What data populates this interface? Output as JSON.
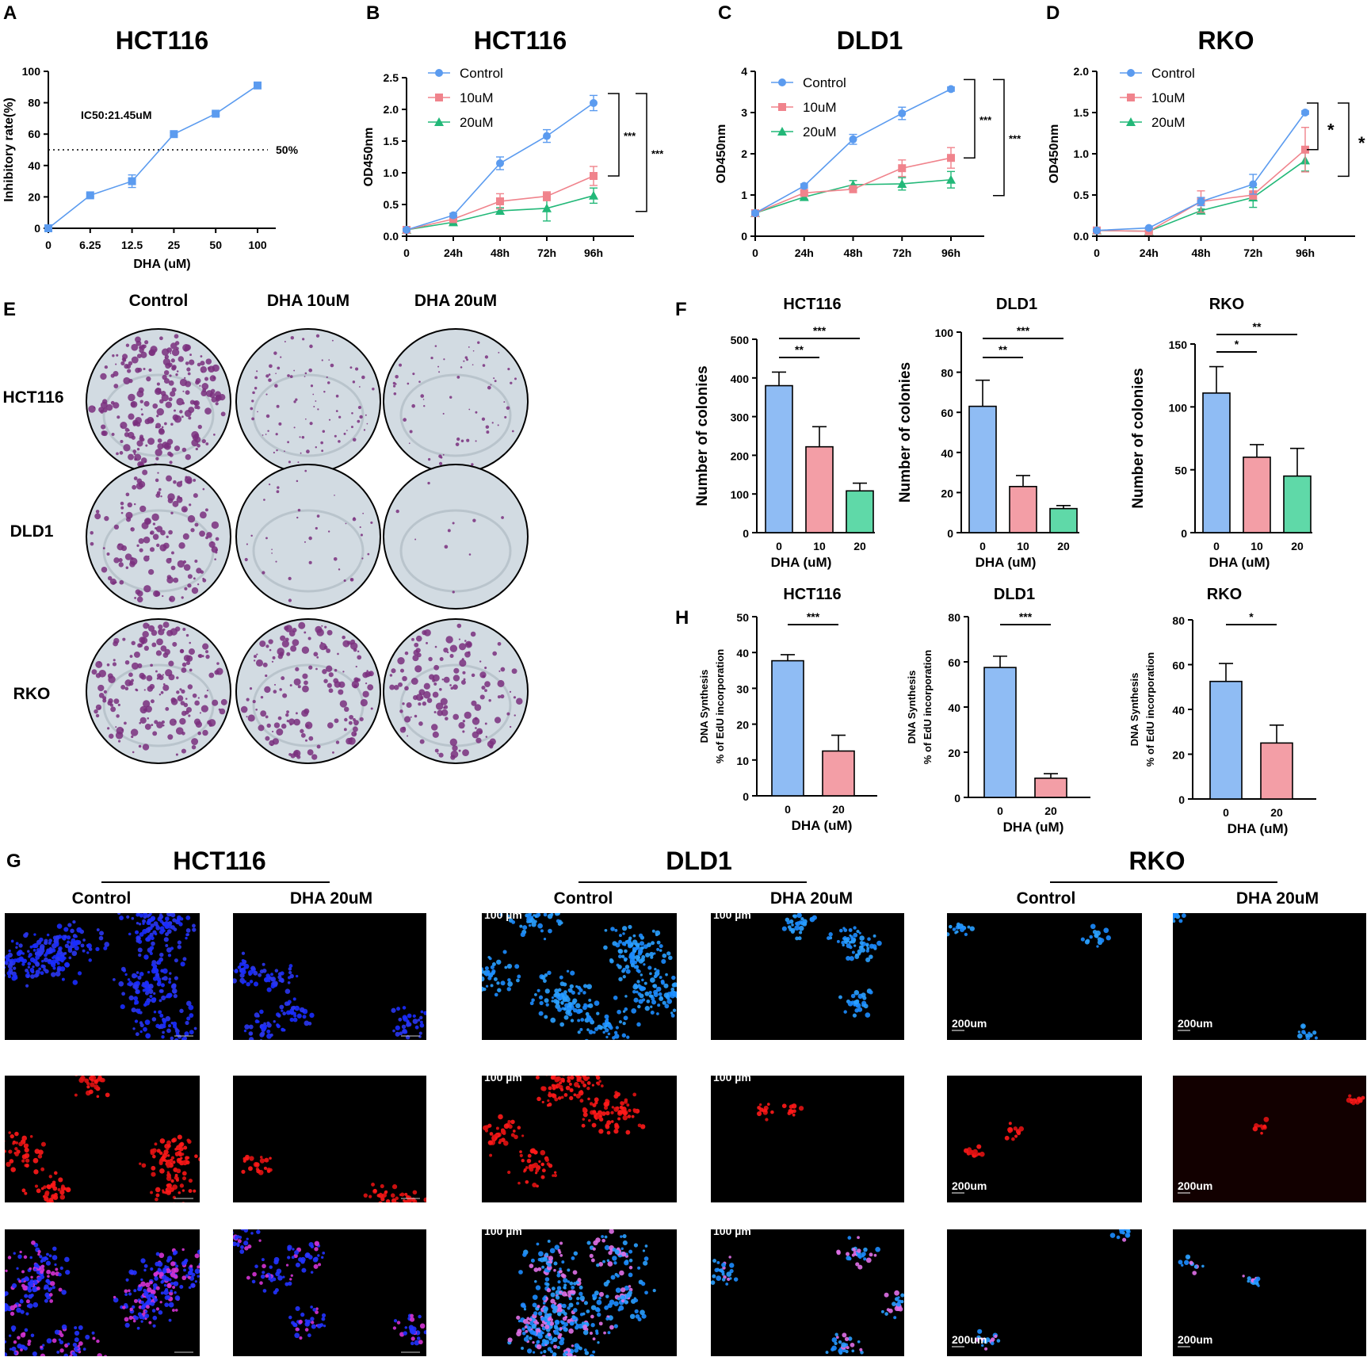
{
  "panel_letters": {
    "A": "A",
    "B": "B",
    "C": "C",
    "D": "D",
    "E": "E",
    "F": "F",
    "H": "H",
    "G": "G"
  },
  "colors": {
    "control": "#5b9bef",
    "c10": "#f0838c",
    "c20": "#22b878",
    "bar_control": "#8fbcf4",
    "bar_10": "#f39ea6",
    "bar_20": "#5fd9a8",
    "dish_bg": "#d2dbe2",
    "colony": "#7a2f7e"
  },
  "colony_assay": {
    "columns": [
      "Control",
      "DHA 10uM",
      "DHA 20uM"
    ],
    "rows": [
      "HCT116",
      "DLD1",
      "RKO"
    ],
    "colony_density": [
      [
        0.9,
        0.35,
        0.25
      ],
      [
        0.55,
        0.15,
        0.04
      ],
      [
        0.7,
        0.6,
        0.55
      ]
    ]
  },
  "edu_imaging": {
    "groups": [
      "HCT116",
      "DLD1",
      "RKO"
    ],
    "conditions": [
      "Control",
      "DHA 20uM"
    ],
    "scale_labels": [
      "100 µm",
      "200um"
    ],
    "channels": [
      "blue",
      "red",
      "merge"
    ]
  },
  "chart_data": [
    {
      "id": "A",
      "type": "line",
      "title": "HCT116",
      "xlabel": "DHA (uM)",
      "ylabel": "Inhibitory rate(%)",
      "categories": [
        "0",
        "6.25",
        "12.5",
        "25",
        "50",
        "100"
      ],
      "ylim": [
        0,
        100
      ],
      "yticks": [
        0,
        20,
        40,
        60,
        80,
        100
      ],
      "series": [
        {
          "values": [
            0,
            21,
            30,
            60,
            73,
            91
          ],
          "err": [
            0,
            1,
            4,
            1,
            1,
            1
          ]
        }
      ],
      "annotation": "IC50:21.45uM",
      "refline": {
        "value": 50,
        "label": "50%"
      }
    },
    {
      "id": "B",
      "type": "line",
      "title": "HCT116",
      "xlabel": "",
      "ylabel": "OD450nm",
      "categories": [
        "0",
        "24h",
        "48h",
        "72h",
        "96h"
      ],
      "ylim": [
        0,
        2.5
      ],
      "yticks": [
        0.0,
        0.5,
        1.0,
        1.5,
        2.0,
        2.5
      ],
      "legend_position": "top-left",
      "series": [
        {
          "name": "Control",
          "values": [
            0.1,
            0.33,
            1.15,
            1.58,
            2.1
          ],
          "err": [
            0.02,
            0.03,
            0.1,
            0.1,
            0.12
          ]
        },
        {
          "name": "10uM",
          "values": [
            0.1,
            0.27,
            0.55,
            0.63,
            0.95
          ],
          "err": [
            0.02,
            0.03,
            0.12,
            0.07,
            0.15
          ]
        },
        {
          "name": "20uM",
          "values": [
            0.1,
            0.22,
            0.4,
            0.44,
            0.64
          ],
          "err": [
            0.02,
            0.03,
            0.05,
            0.2,
            0.12
          ]
        }
      ],
      "significance": [
        {
          "label": "***"
        },
        {
          "label": "***"
        }
      ]
    },
    {
      "id": "C",
      "type": "line",
      "title": "DLD1",
      "xlabel": "",
      "ylabel": "OD450nm",
      "categories": [
        "0",
        "24h",
        "48h",
        "72h",
        "96h"
      ],
      "ylim": [
        0,
        4
      ],
      "yticks": [
        0,
        1,
        2,
        3,
        4
      ],
      "legend_position": "top-left",
      "series": [
        {
          "name": "Control",
          "values": [
            0.56,
            1.22,
            2.35,
            2.98,
            3.57
          ],
          "err": [
            0.05,
            0.05,
            0.12,
            0.15,
            0.05
          ]
        },
        {
          "name": "10uM",
          "values": [
            0.56,
            1.05,
            1.14,
            1.65,
            1.9
          ],
          "err": [
            0.05,
            0.05,
            0.08,
            0.2,
            0.25
          ]
        },
        {
          "name": "20uM",
          "values": [
            0.56,
            0.95,
            1.25,
            1.27,
            1.37
          ],
          "err": [
            0.05,
            0.05,
            0.1,
            0.15,
            0.2
          ]
        }
      ],
      "significance": [
        {
          "label": "***"
        },
        {
          "label": "***"
        }
      ]
    },
    {
      "id": "D",
      "type": "line",
      "title": "RKO",
      "xlabel": "",
      "ylabel": "OD450nm",
      "categories": [
        "0",
        "24h",
        "48h",
        "72h",
        "96h"
      ],
      "ylim": [
        0,
        2.0
      ],
      "yticks": [
        0.0,
        0.5,
        1.0,
        1.5,
        2.0
      ],
      "legend_position": "top-left",
      "series": [
        {
          "name": "Control",
          "values": [
            0.07,
            0.1,
            0.42,
            0.63,
            1.5
          ],
          "err": [
            0.01,
            0.01,
            0.05,
            0.12,
            0.02
          ]
        },
        {
          "name": "10uM",
          "values": [
            0.07,
            0.06,
            0.42,
            0.5,
            1.05
          ],
          "err": [
            0.01,
            0.01,
            0.13,
            0.05,
            0.27
          ]
        },
        {
          "name": "20uM",
          "values": [
            0.07,
            0.06,
            0.31,
            0.47,
            0.92
          ],
          "err": [
            0.01,
            0.01,
            0.02,
            0.12,
            0.13
          ]
        }
      ],
      "significance": [
        {
          "label": "*"
        },
        {
          "label": "*"
        }
      ]
    },
    {
      "id": "F1",
      "type": "bar",
      "title": "HCT116",
      "xlabel": "DHA (uM)",
      "ylabel": "Number of colonies",
      "categories": [
        "0",
        "10",
        "20"
      ],
      "values": [
        380,
        222,
        108
      ],
      "err": [
        35,
        52,
        20
      ],
      "ylim": [
        0,
        500
      ],
      "yticks": [
        0,
        100,
        200,
        300,
        400,
        500
      ],
      "significance": [
        {
          "from": 0,
          "to": 1,
          "label": "**"
        },
        {
          "from": 0,
          "to": 2,
          "label": "***"
        }
      ]
    },
    {
      "id": "F2",
      "type": "bar",
      "title": "DLD1",
      "xlabel": "DHA (uM)",
      "ylabel": "Number of colonies",
      "categories": [
        "0",
        "10",
        "20"
      ],
      "values": [
        63,
        23,
        12
      ],
      "err": [
        13,
        5.5,
        1.5
      ],
      "ylim": [
        0,
        100
      ],
      "yticks": [
        0,
        20,
        40,
        60,
        80,
        100
      ],
      "significance": [
        {
          "from": 0,
          "to": 1,
          "label": "**"
        },
        {
          "from": 0,
          "to": 2,
          "label": "***"
        }
      ]
    },
    {
      "id": "F3",
      "type": "bar",
      "title": "RKO",
      "xlabel": "DHA (uM)",
      "ylabel": "Number of colonies",
      "categories": [
        "0",
        "10",
        "20"
      ],
      "values": [
        111,
        60,
        45
      ],
      "err": [
        21,
        10,
        22
      ],
      "ylim": [
        0,
        150
      ],
      "yticks": [
        0,
        50,
        100,
        150
      ],
      "significance": [
        {
          "from": 0,
          "to": 1,
          "label": "*"
        },
        {
          "from": 0,
          "to": 2,
          "label": "**"
        }
      ]
    },
    {
      "id": "H1",
      "type": "bar",
      "title": "HCT116",
      "xlabel": "DHA (uM)",
      "ylabel": [
        "DNA Synthesis",
        "% of EdU incorporation"
      ],
      "categories": [
        "0",
        "20"
      ],
      "values": [
        37.7,
        12.5
      ],
      "err": [
        1.7,
        4.4
      ],
      "ylim": [
        0,
        50
      ],
      "yticks": [
        0,
        10,
        20,
        30,
        40,
        50
      ],
      "significance": [
        {
          "from": 0,
          "to": 1,
          "label": "***"
        }
      ]
    },
    {
      "id": "H2",
      "type": "bar",
      "title": "DLD1",
      "xlabel": "DHA (uM)",
      "ylabel": [
        "DNA Synthesis",
        "% of EdU incorporation"
      ],
      "categories": [
        "0",
        "20"
      ],
      "values": [
        57.5,
        8.5
      ],
      "err": [
        5,
        2
      ],
      "ylim": [
        0,
        80
      ],
      "yticks": [
        0,
        20,
        40,
        60,
        80
      ],
      "significance": [
        {
          "from": 0,
          "to": 1,
          "label": "***"
        }
      ]
    },
    {
      "id": "H3",
      "type": "bar",
      "title": "RKO",
      "xlabel": "DHA (uM)",
      "ylabel": [
        "DNA Synthesis",
        "% of EdU incorporation"
      ],
      "categories": [
        "0",
        "20"
      ],
      "values": [
        52.5,
        25
      ],
      "err": [
        8,
        8
      ],
      "ylim": [
        0,
        80
      ],
      "yticks": [
        0,
        20,
        40,
        60,
        80
      ],
      "significance": [
        {
          "from": 0,
          "to": 1,
          "label": "*"
        }
      ]
    }
  ]
}
